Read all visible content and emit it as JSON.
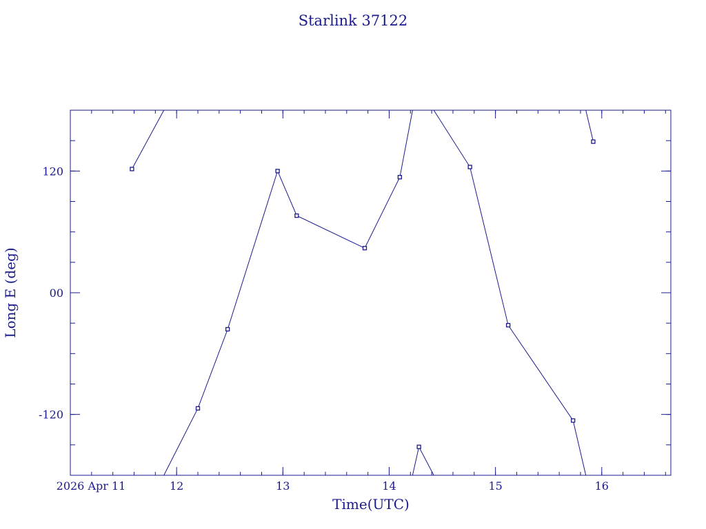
{
  "chart_data": {
    "type": "line",
    "title": "Starlink 37122",
    "xlabel": "Time(UTC)",
    "ylabel": "Long E (deg)",
    "date_label": "2026 Apr 11",
    "xlim": [
      11.0,
      16.65
    ],
    "ylim": [
      -180,
      180
    ],
    "x_ticks": [
      12,
      13,
      14,
      15,
      16
    ],
    "x_tick_labels": [
      "12",
      "13",
      "14",
      "15",
      "16"
    ],
    "y_ticks": [
      -120,
      0,
      120
    ],
    "y_tick_labels": [
      "-120",
      "00",
      "120"
    ],
    "grid": false,
    "color": "#1a1a8c",
    "series": [
      {
        "points": [
          [
            11.58,
            122
          ],
          [
            11.88,
            180
          ]
        ],
        "marked": [
          true,
          false
        ]
      },
      {
        "points": [
          [
            11.88,
            -180
          ],
          [
            12.2,
            -114
          ],
          [
            12.48,
            -36
          ],
          [
            12.95,
            120
          ],
          [
            13.13,
            76
          ],
          [
            13.77,
            44
          ],
          [
            14.1,
            114
          ],
          [
            14.22,
            180
          ]
        ],
        "marked": [
          false,
          true,
          true,
          true,
          true,
          true,
          true,
          false
        ]
      },
      {
        "points": [
          [
            14.42,
            180
          ],
          [
            14.76,
            124
          ],
          [
            15.12,
            -32
          ],
          [
            15.73,
            -126
          ],
          [
            15.85,
            -180
          ]
        ],
        "marked": [
          false,
          true,
          true,
          true,
          false
        ]
      },
      {
        "points": [
          [
            15.85,
            180
          ],
          [
            15.92,
            149
          ]
        ],
        "marked": [
          false,
          true
        ]
      },
      {
        "points": [
          [
            14.22,
            -180
          ],
          [
            14.28,
            -152
          ],
          [
            14.42,
            -180
          ]
        ],
        "marked": [
          false,
          true,
          false
        ]
      }
    ]
  }
}
